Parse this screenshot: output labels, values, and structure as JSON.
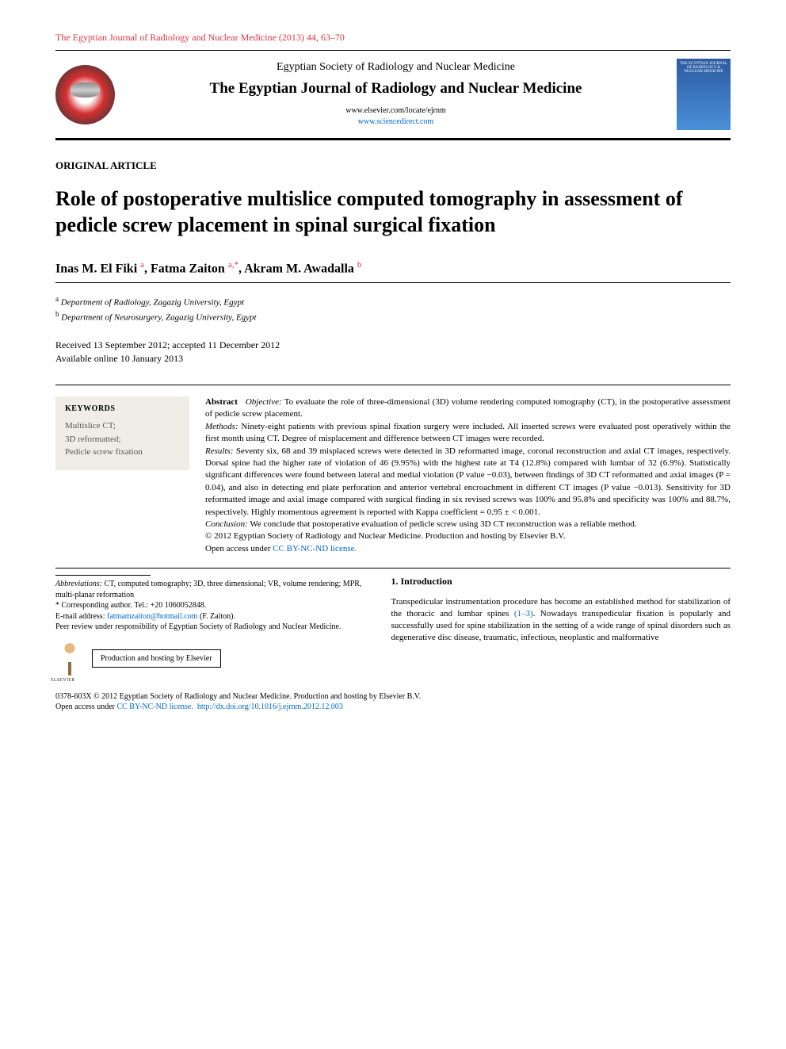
{
  "journalRef": "The Egyptian Journal of Radiology and Nuclear Medicine (2013) 44, 63–70",
  "masthead": {
    "society": "Egyptian Society of Radiology and Nuclear Medicine",
    "journalName": "The Egyptian Journal of Radiology and Nuclear Medicine",
    "link1": "www.elsevier.com/locate/ejrnm",
    "link2": "www.sciencedirect.com",
    "coverTitle": "THE EGYPTIAN JOURNAL OF RADIOLOGY & NUCLEAR MEDICINE"
  },
  "articleType": "ORIGINAL ARTICLE",
  "title": "Role of postoperative multislice computed tomography in assessment of pedicle screw placement in spinal surgical fixation",
  "authors": {
    "a1_name": "Inas M. El Fiki",
    "a1_sup": "a",
    "a2_name": "Fatma Zaiton",
    "a2_sup": "a,*",
    "a3_name": "Akram M. Awadalla",
    "a3_sup": "b"
  },
  "affiliations": {
    "a_sup": "a",
    "a_text": "Department of Radiology, Zagazig University, Egypt",
    "b_sup": "b",
    "b_text": "Department of Neurosurgery, Zagazig University, Egypt"
  },
  "dates": {
    "received": "Received 13 September 2012; accepted 11 December 2012",
    "online": "Available online 10 January 2013"
  },
  "keywords": {
    "heading": "KEYWORDS",
    "k1": "Multislice CT;",
    "k2": "3D reformatted;",
    "k3": "Pedicle screw fixation"
  },
  "abstract": {
    "lead": "Abstract",
    "objectiveLabel": "Objective:",
    "objective": "To evaluate the role of three-dimensional (3D) volume rendering computed tomography (CT), in the postoperative assessment of pedicle screw placement.",
    "methodsLabel": "Methods:",
    "methods": "Ninety-eight patients with previous spinal fixation surgery were included. All inserted screws were evaluated post operatively within the first month using CT. Degree of misplacement and difference between CT images were recorded.",
    "resultsLabel": "Results:",
    "results": "Seventy six, 68 and 39 misplaced screws were detected in 3D reformatted image, coronal reconstruction and axial CT images, respectively. Dorsal spine had the higher rate of violation of 46 (9.95%) with the highest rate at T4 (12.8%) compared with lumbar of 32 (6.9%). Statistically significant differences were found between lateral and medial violation (P value −0.03), between findings of 3D CT reformatted and axial images (P = 0.04), and also in detecting end plate perforation and anterior vertebral encroachment in different CT images (P value −0.013). Sensitivity for 3D reformatted image and axial image compared with surgical finding in six revised screws was 100% and 95.8% and specificity was 100% and 88.7%, respectively. Highly momentous agreement is reported with Kappa coefficient = 0.95 ± < 0.001.",
    "conclusionLabel": "Conclusion:",
    "conclusion": "We conclude that postoperative evaluation of pedicle screw using 3D CT reconstruction was a reliable method.",
    "copyright": "© 2012 Egyptian Society of Radiology and Nuclear Medicine. Production and hosting by Elsevier B.V.",
    "openAccess": "Open access under ",
    "license": "CC BY-NC-ND license."
  },
  "footnotes": {
    "abbrLabel": "Abbreviations:",
    "abbr": "CT, computed tomography; 3D, three dimensional; VR, volume rendering; MPR, multi-planar reformation",
    "corrStar": "*",
    "corr": "Corresponding author. Tel.: +20 1060052848.",
    "emailLabel": "E-mail address:",
    "email": "fatmamzaiton@hotmail.com",
    "emailSuffix": "(F. Zaiton).",
    "peer": "Peer review under responsibility of Egyptian Society of Radiology and Nuclear Medicine.",
    "hosting": "Production and hosting by Elsevier"
  },
  "intro": {
    "heading": "1. Introduction",
    "para": "Transpedicular instrumentation procedure has become an established method for stabilization of the thoracic and lumbar spines (1–3). Nowadays transpedicular fixation is popularly and successfully used for spine stabilization in the setting of a wide range of spinal disorders such as degenerative disc disease, traumatic, infectious, neoplastic and malformative",
    "refLink": "(1–3)"
  },
  "footer": {
    "issn": "0378-603X © 2012 Egyptian Society of Radiology and Nuclear Medicine. Production and hosting by Elsevier B.V.",
    "openAccess": "Open access under ",
    "license": "CC BY-NC-ND license.",
    "doi": "http://dx.doi.org/10.1016/j.ejrnm.2012.12.003"
  }
}
